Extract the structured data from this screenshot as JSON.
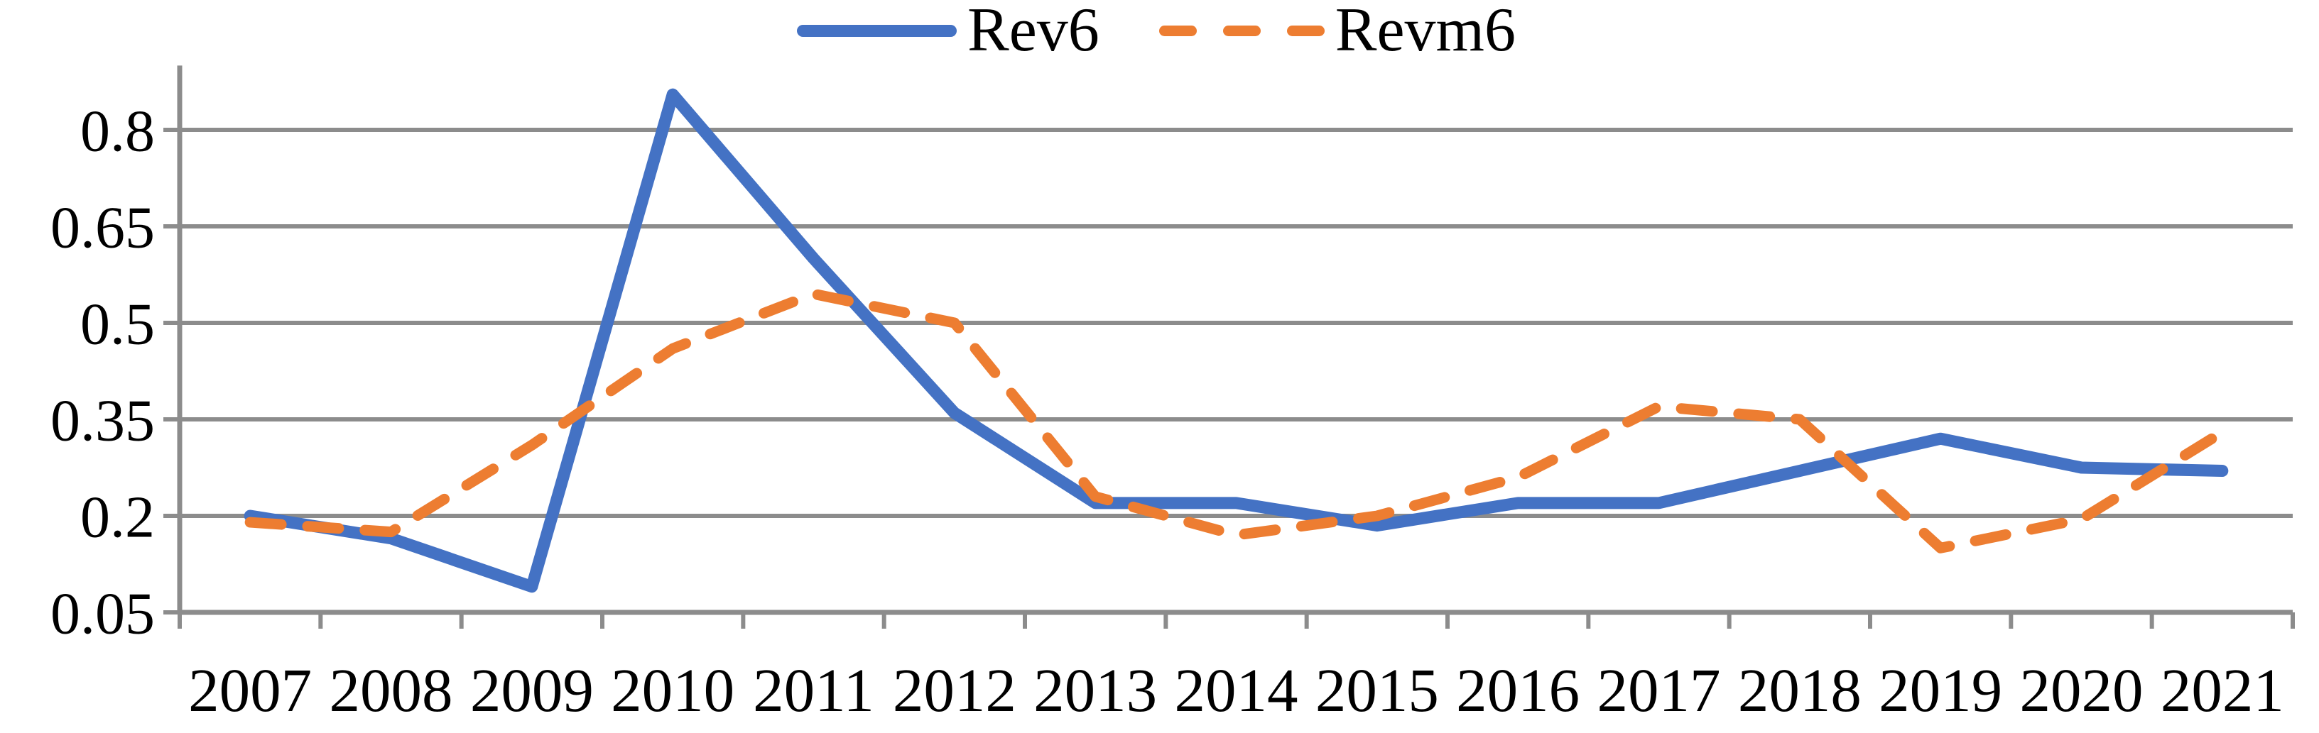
{
  "chart_data": {
    "type": "line",
    "title": "",
    "xlabel": "",
    "ylabel": "",
    "categories": [
      "2007",
      "2008",
      "2009",
      "2010",
      "2011",
      "2012",
      "2013",
      "2014",
      "2015",
      "2016",
      "2017",
      "2018",
      "2019",
      "2020",
      "2021"
    ],
    "series": [
      {
        "name": "Rev6",
        "style": "solid",
        "color": "#4472C4",
        "values": [
          0.2,
          0.165,
          0.09,
          0.855,
          0.6,
          0.36,
          0.22,
          0.22,
          0.185,
          0.22,
          0.22,
          0.27,
          0.32,
          0.275,
          0.27
        ]
      },
      {
        "name": "Revm6",
        "style": "dashed",
        "color": "#ED7D31",
        "values": [
          0.19,
          0.175,
          0.31,
          0.46,
          0.545,
          0.5,
          0.23,
          0.17,
          0.2,
          0.26,
          0.37,
          0.35,
          0.15,
          0.195,
          0.33
        ]
      }
    ],
    "y_min": 0.05,
    "y_max": 0.9,
    "y_major_unit": 0.15,
    "y_ticks": [
      0.8,
      0.65,
      0.5,
      0.35,
      0.2,
      0.05
    ],
    "y_tick_labels": [
      "0.8",
      "0.65",
      "0.5",
      "0.35",
      "0.2",
      "0.05"
    ],
    "grid": true,
    "legend_position": "top-center",
    "axis_color": "#8c8c8c",
    "text_color": "#000000"
  }
}
